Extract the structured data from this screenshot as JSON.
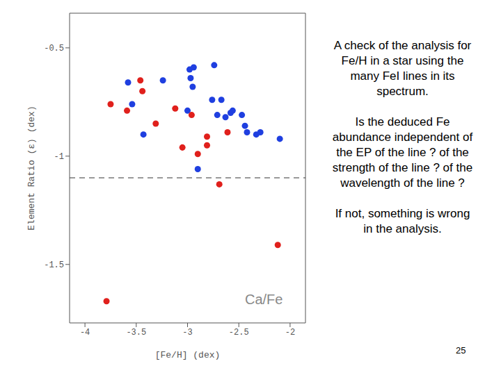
{
  "chart_data": {
    "type": "scatter",
    "x_label": "[Fe/H] (dex)",
    "y_label": "Element Ratio (ε) (dex)",
    "annotation": "Ca/Fe",
    "xlim": [
      -4.15,
      -1.85
    ],
    "xticks": [
      -4,
      -3.5,
      -3,
      -2.5,
      -2
    ],
    "ylim": [
      -1.77,
      -0.34
    ],
    "yticks": [
      -1.5,
      -1,
      -0.5
    ],
    "reference_line": -1.1,
    "series": [
      {
        "color": "#1f3fe0",
        "marker": "circle",
        "x": [
          -3.58,
          -3.54,
          -3.43,
          -3.24,
          -2.98,
          -2.94,
          -2.97,
          -2.95,
          -3.0,
          -2.9,
          -2.74,
          -2.76,
          -2.67,
          -2.71,
          -2.63,
          -2.58,
          -2.56,
          -2.47,
          -2.44,
          -2.42,
          -2.33,
          -2.29,
          -2.1
        ],
        "y": [
          -0.66,
          -0.76,
          -0.9,
          -0.65,
          -0.6,
          -0.59,
          -0.64,
          -0.68,
          -0.79,
          -1.06,
          -0.58,
          -0.74,
          -0.74,
          -0.81,
          -0.82,
          -0.8,
          -0.79,
          -0.81,
          -0.86,
          -0.89,
          -0.9,
          -0.89,
          -0.92
        ]
      },
      {
        "color": "#e0201c",
        "marker": "circle",
        "x": [
          -3.79,
          -3.75,
          -3.59,
          -3.46,
          -3.44,
          -3.31,
          -3.12,
          -3.05,
          -2.96,
          -2.9,
          -2.81,
          -2.81,
          -2.69,
          -2.61,
          -2.12
        ],
        "y": [
          -1.67,
          -0.76,
          -0.79,
          -0.65,
          -0.7,
          -0.85,
          -0.78,
          -0.96,
          -0.81,
          -0.99,
          -0.91,
          -0.95,
          -1.13,
          -0.89,
          -1.41
        ]
      }
    ]
  },
  "slide": {
    "paragraphs": [
      "A check of the analysis for Fe/H in a star using the many FeI lines in its spectrum.",
      "Is the deduced Fe abundance independent of the EP of the line ? of the strength of the line ? of the wavelength of the line ?",
      "If not, something is wrong in the analysis."
    ],
    "page_number": "25"
  }
}
